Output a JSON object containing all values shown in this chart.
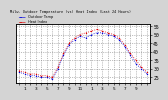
{
  "title": "Milw. Outdoor Temperature (vs) Heat Index (Last 24 Hours)",
  "legend_temp": "Outdoor Temp",
  "legend_heat": "Heat Index",
  "bg_color": "#d4d4d4",
  "plot_bg_color": "#ffffff",
  "temp_color": "#0000dd",
  "heat_color": "#dd0000",
  "black_color": "#000000",
  "grid_color": "#888888",
  "hours": [
    0,
    1,
    2,
    3,
    4,
    5,
    6,
    7,
    8,
    9,
    10,
    11,
    12,
    13,
    14,
    15,
    16,
    17,
    18,
    19,
    20,
    21,
    22,
    23
  ],
  "temp_values": [
    28,
    27,
    26,
    26,
    25,
    25,
    24,
    30,
    38,
    44,
    47,
    49,
    48,
    50,
    51,
    51,
    50,
    49,
    47,
    43,
    38,
    33,
    30,
    27
  ],
  "heat_values": [
    29,
    28,
    27,
    27,
    26,
    26,
    25,
    31,
    39,
    45,
    48,
    50,
    51,
    52,
    53,
    52,
    51,
    50,
    48,
    44,
    39,
    35,
    31,
    28
  ],
  "ylim": [
    22,
    56
  ],
  "yticks": [
    25,
    30,
    35,
    40,
    45,
    50,
    55
  ],
  "ytick_labels": [
    "25",
    "30",
    "35",
    "40",
    "45",
    "50",
    "55"
  ],
  "xtick_positions": [
    0,
    1,
    2,
    3,
    4,
    5,
    6,
    7,
    8,
    9,
    10,
    11,
    12,
    13,
    14,
    15,
    16,
    17,
    18,
    19,
    20,
    21,
    22,
    23
  ],
  "xtick_labels": [
    "",
    "1",
    "",
    "3",
    "",
    "5",
    "",
    "7",
    "",
    "9",
    "",
    "11",
    "",
    "1",
    "",
    "3",
    "",
    "5",
    "",
    "7",
    "",
    "9",
    "",
    ""
  ],
  "vgrid_positions": [
    0,
    1,
    2,
    3,
    4,
    5,
    6,
    7,
    8,
    9,
    10,
    11,
    12,
    13,
    14,
    15,
    16,
    17,
    18,
    19,
    20,
    21,
    22,
    23
  ]
}
